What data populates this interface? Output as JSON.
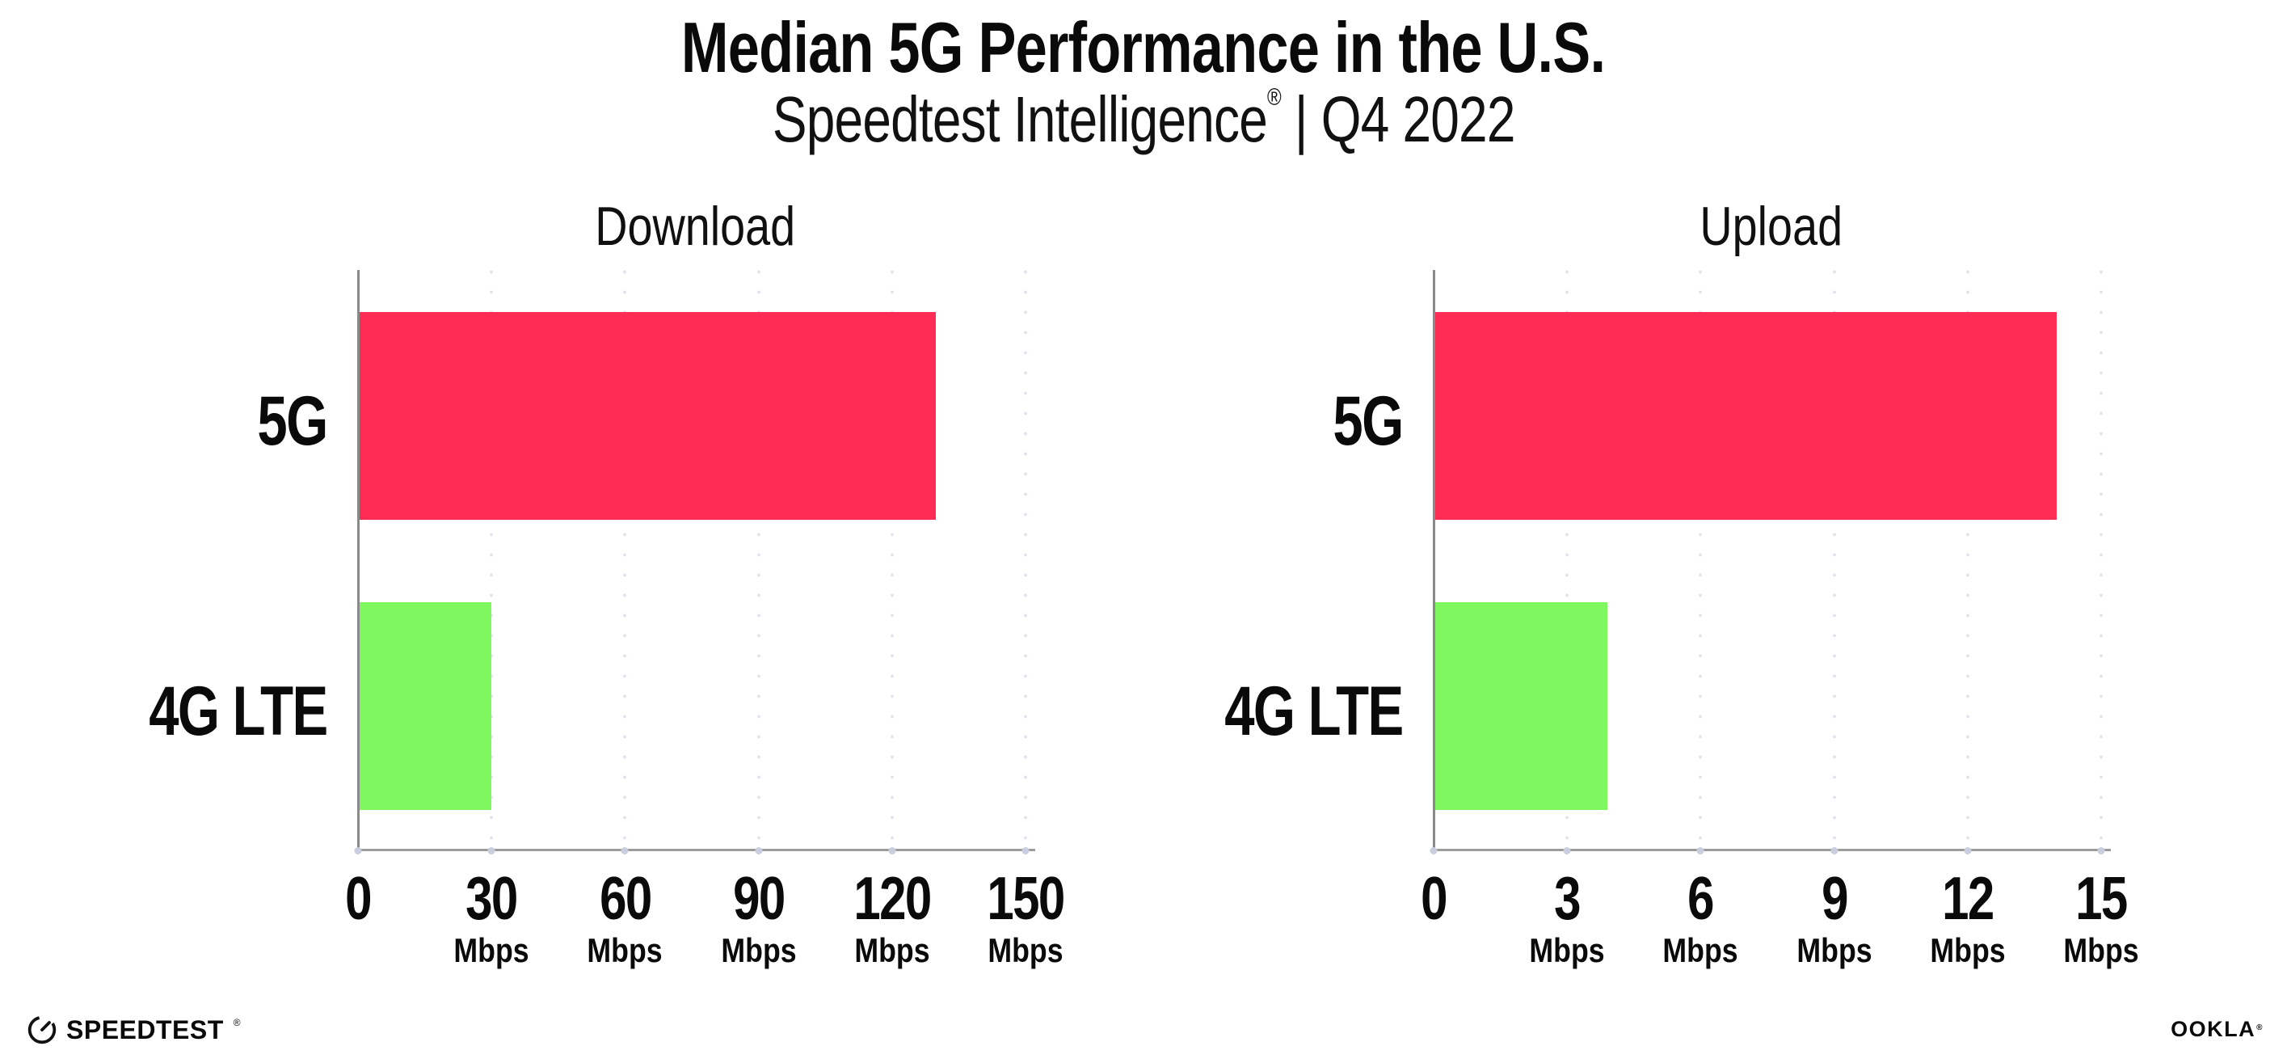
{
  "header": {
    "title": "Median 5G Performance in the U.S.",
    "subtitle_brand": "Speedtest Intelligence",
    "subtitle_mark": "®",
    "subtitle_rest": " | Q4 2022"
  },
  "chart_data": [
    {
      "type": "bar",
      "orientation": "horizontal",
      "title": "Download",
      "categories": [
        "5G",
        "4G LTE"
      ],
      "values": [
        129.9,
        30
      ],
      "unit": "Mbps",
      "xlim": [
        0,
        150
      ],
      "xticks": [
        0,
        30,
        60,
        90,
        120,
        150
      ],
      "colors": [
        "#FF2D55",
        "#7FF75F"
      ],
      "grid": "dotted-vertical",
      "legend": "none"
    },
    {
      "type": "bar",
      "orientation": "horizontal",
      "title": "Upload",
      "categories": [
        "5G",
        "4G LTE"
      ],
      "values": [
        14,
        3.9
      ],
      "unit": "Mbps",
      "xlim": [
        0,
        15
      ],
      "xticks": [
        0,
        3,
        6,
        9,
        12,
        15
      ],
      "colors": [
        "#FF2D55",
        "#7FF75F"
      ],
      "grid": "dotted-vertical",
      "legend": "none"
    }
  ],
  "footer": {
    "speedtest_label": "SPEEDTEST",
    "speedtest_mark": "®",
    "ookla_label": "OOKLA",
    "ookla_mark": "®"
  },
  "icons": {
    "gauge": "speedtest-gauge-icon"
  },
  "colors": {
    "bar_5g": "#FF2D55",
    "bar_4g_lte": "#7FF75F",
    "gridline": "#E2E2EE",
    "axis": "#9C9C9C",
    "text": "#0A0A0A"
  }
}
